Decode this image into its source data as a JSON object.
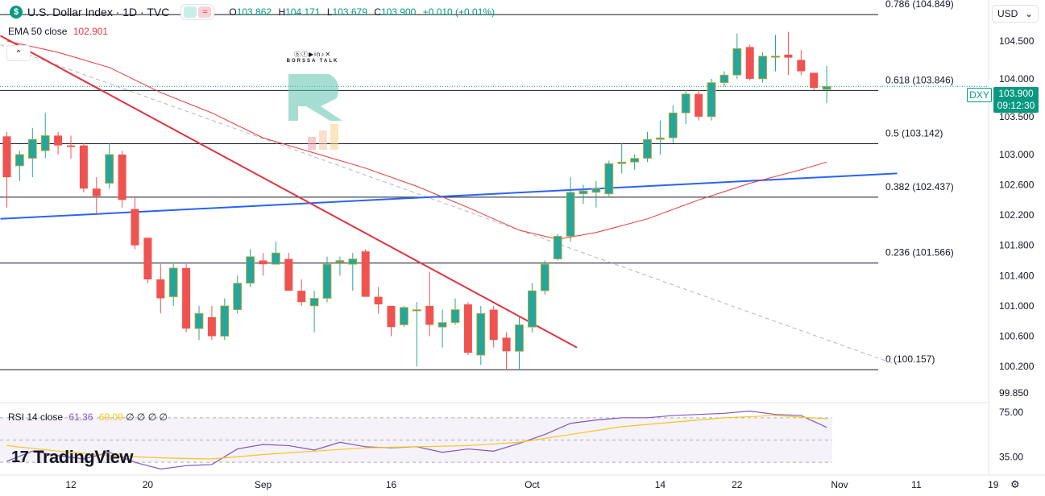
{
  "header": {
    "symbol_icon": "dollar-icon",
    "symbol_glyph": "$",
    "title": "U.S. Dollar Index · 1D · TVC",
    "open_label": "O",
    "open": "103.862",
    "high_label": "H",
    "high": "104.171",
    "low_label": "L",
    "low": "103.679",
    "close_label": "C",
    "close": "103.900",
    "change": "+0.010 (+0.01%)"
  },
  "ema": {
    "label": "EMA 50 close",
    "value": "102.901"
  },
  "rsi": {
    "label": "RSI 14 close",
    "value": "61.36",
    "ma_value": "69.09",
    "extra": "∅ ∅ ∅ ∅"
  },
  "currency": {
    "label": "USD",
    "icon": "chevron-down-icon"
  },
  "price_badge": {
    "symbol": "DXY",
    "price": "103.900",
    "countdown": "09:12:30"
  },
  "watermark": {
    "icons": "ⓑⓕ▶in♪✕",
    "name": "BORSSA TALK"
  },
  "logo": {
    "mark": "17",
    "text": "TradingView"
  },
  "colors": {
    "up": "#26a69a",
    "down": "#ef5350",
    "up_fill": "#26a69a",
    "ema": "#e53935",
    "fib": "#131722",
    "trend_red": "#e0323f",
    "trend_blue": "#2962ff",
    "rsi": "#7e57c2",
    "rsi_ma": "#f7c51f"
  },
  "chart_data": [
    {
      "type": "candlestick",
      "title": "U.S. Dollar Index · 1D · TVC",
      "ylim": [
        99.85,
        104.85
      ],
      "y_ticks": [
        "104.500",
        "104.000",
        "103.500",
        "103.000",
        "102.600",
        "102.200",
        "101.800",
        "101.400",
        "101.000",
        "100.600",
        "100.200",
        "99.850"
      ],
      "x_ticks": [
        {
          "label": "12",
          "index": 5
        },
        {
          "label": "20",
          "index": 11
        },
        {
          "label": "Sep",
          "index": 20
        },
        {
          "label": "16",
          "index": 30
        },
        {
          "label": "Oct",
          "index": 41
        },
        {
          "label": "14",
          "index": 51
        },
        {
          "label": "22",
          "index": 57
        },
        {
          "label": "Nov",
          "index": 65
        },
        {
          "label": "11",
          "index": 71
        },
        {
          "label": "19",
          "index": 77
        }
      ],
      "candles": [
        {
          "o": 103.24,
          "h": 103.3,
          "l": 102.3,
          "c": 102.7
        },
        {
          "o": 102.85,
          "h": 103.05,
          "l": 102.65,
          "c": 103.0
        },
        {
          "o": 102.95,
          "h": 103.35,
          "l": 102.7,
          "c": 103.2
        },
        {
          "o": 103.05,
          "h": 103.55,
          "l": 102.95,
          "c": 103.25
        },
        {
          "o": 103.25,
          "h": 103.3,
          "l": 103.0,
          "c": 103.12
        },
        {
          "o": 103.12,
          "h": 103.25,
          "l": 102.95,
          "c": 103.1
        },
        {
          "o": 103.12,
          "h": 103.15,
          "l": 102.5,
          "c": 102.55
        },
        {
          "o": 102.55,
          "h": 102.7,
          "l": 102.2,
          "c": 102.45
        },
        {
          "o": 102.62,
          "h": 103.15,
          "l": 102.55,
          "c": 103.0
        },
        {
          "o": 103.0,
          "h": 103.05,
          "l": 102.3,
          "c": 102.4
        },
        {
          "o": 102.28,
          "h": 102.45,
          "l": 101.75,
          "c": 101.8
        },
        {
          "o": 101.9,
          "h": 101.9,
          "l": 101.3,
          "c": 101.35
        },
        {
          "o": 101.35,
          "h": 101.55,
          "l": 100.9,
          "c": 101.1
        },
        {
          "o": 101.12,
          "h": 101.55,
          "l": 101.0,
          "c": 101.5
        },
        {
          "o": 101.5,
          "h": 101.55,
          "l": 100.65,
          "c": 100.7
        },
        {
          "o": 100.7,
          "h": 101.0,
          "l": 100.55,
          "c": 100.9
        },
        {
          "o": 100.85,
          "h": 101.0,
          "l": 100.55,
          "c": 100.6
        },
        {
          "o": 100.6,
          "h": 101.1,
          "l": 100.55,
          "c": 101.0
        },
        {
          "o": 100.95,
          "h": 101.4,
          "l": 100.9,
          "c": 101.3
        },
        {
          "o": 101.3,
          "h": 101.75,
          "l": 101.25,
          "c": 101.65
        },
        {
          "o": 101.6,
          "h": 101.7,
          "l": 101.4,
          "c": 101.55
        },
        {
          "o": 101.55,
          "h": 101.85,
          "l": 101.55,
          "c": 101.7
        },
        {
          "o": 101.62,
          "h": 101.7,
          "l": 101.2,
          "c": 101.2
        },
        {
          "o": 101.2,
          "h": 101.35,
          "l": 101.0,
          "c": 101.05
        },
        {
          "o": 101.0,
          "h": 101.2,
          "l": 100.65,
          "c": 101.1
        },
        {
          "o": 101.1,
          "h": 101.65,
          "l": 101.05,
          "c": 101.55
        },
        {
          "o": 101.58,
          "h": 101.65,
          "l": 101.4,
          "c": 101.6
        },
        {
          "o": 101.55,
          "h": 101.7,
          "l": 101.2,
          "c": 101.62
        },
        {
          "o": 101.72,
          "h": 101.75,
          "l": 101.12,
          "c": 101.12
        },
        {
          "o": 101.12,
          "h": 101.25,
          "l": 100.9,
          "c": 101.02
        },
        {
          "o": 101.0,
          "h": 101.0,
          "l": 100.6,
          "c": 100.72
        },
        {
          "o": 100.75,
          "h": 101.0,
          "l": 100.72,
          "c": 100.98
        },
        {
          "o": 100.95,
          "h": 101.05,
          "l": 100.2,
          "c": 100.95
        },
        {
          "o": 101.0,
          "h": 101.45,
          "l": 100.6,
          "c": 100.75
        },
        {
          "o": 100.72,
          "h": 100.95,
          "l": 100.45,
          "c": 100.78
        },
        {
          "o": 100.78,
          "h": 101.1,
          "l": 100.75,
          "c": 100.95
        },
        {
          "o": 101.02,
          "h": 101.05,
          "l": 100.35,
          "c": 100.38
        },
        {
          "o": 100.35,
          "h": 101.0,
          "l": 100.22,
          "c": 100.9
        },
        {
          "o": 100.95,
          "h": 101.0,
          "l": 100.45,
          "c": 100.55
        },
        {
          "o": 100.58,
          "h": 100.65,
          "l": 100.15,
          "c": 100.4
        },
        {
          "o": 100.4,
          "h": 100.85,
          "l": 100.15,
          "c": 100.75
        },
        {
          "o": 100.72,
          "h": 101.3,
          "l": 100.65,
          "c": 101.2
        },
        {
          "o": 101.2,
          "h": 101.6,
          "l": 101.15,
          "c": 101.55
        },
        {
          "o": 101.62,
          "h": 101.95,
          "l": 101.6,
          "c": 101.92
        },
        {
          "o": 101.92,
          "h": 102.7,
          "l": 101.85,
          "c": 102.5
        },
        {
          "o": 102.48,
          "h": 102.6,
          "l": 102.35,
          "c": 102.52
        },
        {
          "o": 102.5,
          "h": 102.65,
          "l": 102.3,
          "c": 102.55
        },
        {
          "o": 102.48,
          "h": 102.92,
          "l": 102.45,
          "c": 102.88
        },
        {
          "o": 102.88,
          "h": 103.15,
          "l": 102.75,
          "c": 102.9
        },
        {
          "o": 102.9,
          "h": 103.0,
          "l": 102.8,
          "c": 102.95
        },
        {
          "o": 102.95,
          "h": 103.3,
          "l": 102.9,
          "c": 103.2
        },
        {
          "o": 103.2,
          "h": 103.45,
          "l": 103.0,
          "c": 103.22
        },
        {
          "o": 103.22,
          "h": 103.65,
          "l": 103.15,
          "c": 103.55
        },
        {
          "o": 103.55,
          "h": 103.85,
          "l": 103.4,
          "c": 103.8
        },
        {
          "o": 103.8,
          "h": 103.85,
          "l": 103.45,
          "c": 103.5
        },
        {
          "o": 103.5,
          "h": 104.0,
          "l": 103.45,
          "c": 103.95
        },
        {
          "o": 103.95,
          "h": 104.1,
          "l": 103.9,
          "c": 104.05
        },
        {
          "o": 104.05,
          "h": 104.6,
          "l": 104.0,
          "c": 104.4
        },
        {
          "o": 104.42,
          "h": 104.45,
          "l": 103.98,
          "c": 104.0
        },
        {
          "o": 104.0,
          "h": 104.35,
          "l": 103.95,
          "c": 104.3
        },
        {
          "o": 104.3,
          "h": 104.58,
          "l": 104.1,
          "c": 104.3
        },
        {
          "o": 104.32,
          "h": 104.62,
          "l": 104.05,
          "c": 104.28
        },
        {
          "o": 104.25,
          "h": 104.38,
          "l": 104.05,
          "c": 104.1
        },
        {
          "o": 104.08,
          "h": 104.08,
          "l": 103.85,
          "c": 103.88
        },
        {
          "o": 103.86,
          "h": 104.17,
          "l": 103.68,
          "c": 103.9
        }
      ],
      "ema50": [
        {
          "i": 0,
          "v": 104.5
        },
        {
          "i": 4,
          "v": 104.35
        },
        {
          "i": 8,
          "v": 104.15
        },
        {
          "i": 12,
          "v": 103.82
        },
        {
          "i": 16,
          "v": 103.55
        },
        {
          "i": 20,
          "v": 103.22
        },
        {
          "i": 24,
          "v": 103.02
        },
        {
          "i": 28,
          "v": 102.82
        },
        {
          "i": 32,
          "v": 102.58
        },
        {
          "i": 36,
          "v": 102.3
        },
        {
          "i": 40,
          "v": 102.0
        },
        {
          "i": 43,
          "v": 101.88
        },
        {
          "i": 46,
          "v": 101.97
        },
        {
          "i": 50,
          "v": 102.15
        },
        {
          "i": 54,
          "v": 102.4
        },
        {
          "i": 58,
          "v": 102.62
        },
        {
          "i": 62,
          "v": 102.8
        },
        {
          "i": 64,
          "v": 102.9
        }
      ],
      "fib_levels": [
        {
          "ratio": "0.786",
          "label": "0.786 (104.849)",
          "value": 104.849
        },
        {
          "ratio": "0.618",
          "label": "0.618 (103.846)",
          "value": 103.846
        },
        {
          "ratio": "0.5",
          "label": "0.5 (103.142)",
          "value": 103.142
        },
        {
          "ratio": "0.382",
          "label": "0.382 (102.437)",
          "value": 102.437
        },
        {
          "ratio": "0.236",
          "label": "0.236 (101.566)",
          "value": 101.566
        },
        {
          "ratio": "0",
          "label": "0 (100.157)",
          "value": 100.157
        }
      ],
      "red_trendline": [
        {
          "i": -0.5,
          "v": 104.57
        },
        {
          "i": 44.5,
          "v": 100.45
        }
      ],
      "blue_trendline": [
        {
          "i": -0.5,
          "v": 102.15
        },
        {
          "i": 69.5,
          "v": 102.75
        }
      ],
      "dashed_trendline": [
        {
          "i": -0.5,
          "v": 104.45
        },
        {
          "i": 69.5,
          "v": 100.22
        }
      ]
    },
    {
      "type": "line",
      "title": "RSI 14 close",
      "ylim": [
        20,
        80
      ],
      "y_ticks": [
        "75.00",
        "35.00"
      ],
      "bands": [
        70,
        50,
        30
      ],
      "rsi": [
        {
          "i": 0,
          "v": 31
        },
        {
          "i": 2,
          "v": 40
        },
        {
          "i": 4,
          "v": 36
        },
        {
          "i": 6,
          "v": 33
        },
        {
          "i": 8,
          "v": 39
        },
        {
          "i": 10,
          "v": 30
        },
        {
          "i": 12,
          "v": 24
        },
        {
          "i": 14,
          "v": 27
        },
        {
          "i": 16,
          "v": 28
        },
        {
          "i": 18,
          "v": 42
        },
        {
          "i": 20,
          "v": 46
        },
        {
          "i": 22,
          "v": 45
        },
        {
          "i": 24,
          "v": 41
        },
        {
          "i": 26,
          "v": 48
        },
        {
          "i": 28,
          "v": 44
        },
        {
          "i": 30,
          "v": 43
        },
        {
          "i": 32,
          "v": 44
        },
        {
          "i": 34,
          "v": 39
        },
        {
          "i": 36,
          "v": 42
        },
        {
          "i": 38,
          "v": 40
        },
        {
          "i": 40,
          "v": 47
        },
        {
          "i": 42,
          "v": 55
        },
        {
          "i": 44,
          "v": 65
        },
        {
          "i": 46,
          "v": 68
        },
        {
          "i": 48,
          "v": 70
        },
        {
          "i": 50,
          "v": 70
        },
        {
          "i": 52,
          "v": 72
        },
        {
          "i": 54,
          "v": 73
        },
        {
          "i": 56,
          "v": 74
        },
        {
          "i": 58,
          "v": 76
        },
        {
          "i": 60,
          "v": 73
        },
        {
          "i": 62,
          "v": 72
        },
        {
          "i": 64,
          "v": 61.36
        }
      ],
      "rsi_ma": [
        {
          "i": 0,
          "v": 45
        },
        {
          "i": 4,
          "v": 40
        },
        {
          "i": 8,
          "v": 36
        },
        {
          "i": 12,
          "v": 34
        },
        {
          "i": 16,
          "v": 33
        },
        {
          "i": 20,
          "v": 37
        },
        {
          "i": 24,
          "v": 40
        },
        {
          "i": 28,
          "v": 43
        },
        {
          "i": 32,
          "v": 44
        },
        {
          "i": 36,
          "v": 45
        },
        {
          "i": 40,
          "v": 48
        },
        {
          "i": 44,
          "v": 55
        },
        {
          "i": 48,
          "v": 62
        },
        {
          "i": 52,
          "v": 66
        },
        {
          "i": 56,
          "v": 70
        },
        {
          "i": 60,
          "v": 72
        },
        {
          "i": 64,
          "v": 69.09
        }
      ]
    }
  ]
}
